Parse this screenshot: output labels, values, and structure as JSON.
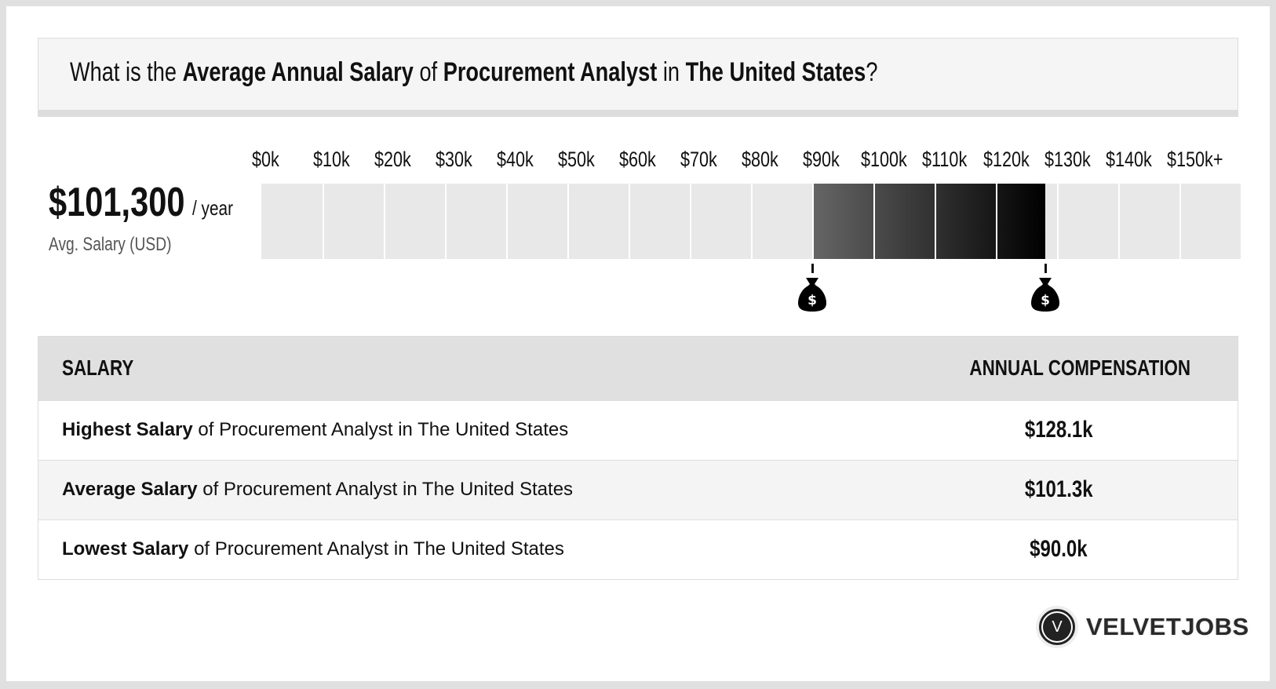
{
  "header": {
    "t1": "What is the ",
    "t2": "Average Annual Salary",
    "t3": " of ",
    "t4": "Procurement Analyst",
    "t5": " in ",
    "t6": "The United States",
    "t7": "?"
  },
  "summary": {
    "amount": "$101,300",
    "per": "/ year",
    "label": "Avg. Salary (USD)"
  },
  "chart_data": {
    "type": "bar",
    "tick_labels": [
      "$0k",
      "$10k",
      "$20k",
      "$30k",
      "$40k",
      "$50k",
      "$60k",
      "$70k",
      "$80k",
      "$90k",
      "$100k",
      "$110k",
      "$120k",
      "$130k",
      "$140k",
      "$150k+"
    ],
    "range_low": 90000,
    "range_high": 128100,
    "average": 101300,
    "colors": {
      "empty": "#e8e8e8",
      "fill_start": "#666666",
      "fill_end": "#000000"
    },
    "markers": [
      "money-bag-icon",
      "money-bag-icon"
    ]
  },
  "table": {
    "headers": [
      "SALARY",
      "ANNUAL COMPENSATION"
    ],
    "rows": [
      {
        "bold": "Highest Salary",
        "rest": " of Procurement Analyst in The United States",
        "value": "$128.1k"
      },
      {
        "bold": "Average Salary",
        "rest": " of Procurement Analyst in The United States",
        "value": "$101.3k"
      },
      {
        "bold": "Lowest Salary",
        "rest": " of Procurement Analyst in The United States",
        "value": "$90.0k"
      }
    ]
  },
  "logo": {
    "mark": "V",
    "name": "VELVETJOBS"
  }
}
